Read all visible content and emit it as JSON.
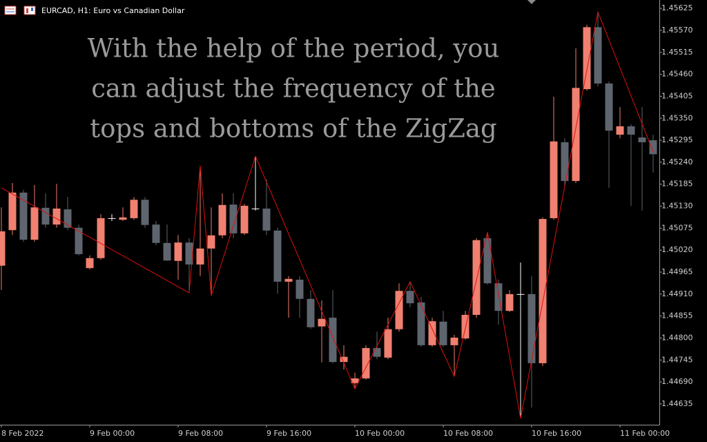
{
  "chart_data": {
    "type": "candlestick",
    "title": "EURCAD, H1:  Euro vs Canadian Dollar",
    "annotation": [
      "With the help of the period, you",
      "can adjust the frequency of the",
      "tops and bottoms of the ZigZag"
    ],
    "categories": [
      "8 Feb 2022",
      null,
      null,
      null,
      null,
      null,
      null,
      null,
      "9 Feb 00:00",
      null,
      null,
      null,
      null,
      null,
      null,
      null,
      "9 Feb 08:00",
      null,
      null,
      null,
      null,
      null,
      null,
      null,
      "9 Feb 16:00",
      null,
      null,
      null,
      null,
      null,
      null,
      null,
      "10 Feb 00:00",
      null,
      null,
      null,
      null,
      null,
      null,
      null,
      "10 Feb 08:00",
      null,
      null,
      null,
      null,
      null,
      null,
      null,
      "10 Feb 16:00",
      null,
      null,
      null,
      null,
      null,
      null,
      null,
      "11 Feb 00:00",
      null,
      null,
      null
    ],
    "open": [
      1.44981,
      1.4507,
      1.45164,
      1.45046,
      1.45126,
      1.45084,
      1.45122,
      1.45076,
      1.44975,
      1.45,
      1.451,
      1.45096,
      1.451,
      1.45146,
      1.45084,
      1.45038,
      1.44993,
      1.45039,
      1.44984,
      1.45024,
      1.45057,
      1.45134,
      1.45062,
      1.45124,
      1.45124,
      1.45069,
      1.44941,
      1.44946,
      1.44898,
      1.44829,
      1.44851,
      1.4474,
      1.44687,
      1.44699,
      1.44775,
      1.44751,
      1.44822,
      1.44918,
      1.44889,
      1.44782,
      1.44841,
      1.44782,
      1.44799,
      1.44858,
      1.4505,
      1.44937,
      1.44868,
      1.4491,
      1.4491,
      1.44737,
      1.451,
      1.4529,
      1.45193,
      1.45423,
      1.45578,
      1.45437,
      1.45309,
      1.4533,
      1.45302,
      1.45295
    ],
    "high": [
      1.45127,
      1.45188,
      1.45171,
      1.45183,
      1.45162,
      1.45186,
      1.45153,
      1.45084,
      1.45007,
      1.4511,
      1.4511,
      1.45127,
      1.45153,
      1.45153,
      1.45093,
      1.45084,
      1.45058,
      1.4505,
      1.45231,
      1.45127,
      1.45162,
      1.45162,
      1.45136,
      1.45255,
      1.45197,
      1.45076,
      1.44955,
      1.44955,
      1.4492,
      1.44894,
      1.4492,
      1.44782,
      1.44713,
      1.44782,
      1.44816,
      1.44851,
      1.44937,
      1.44941,
      1.44903,
      1.44851,
      1.44868,
      1.44808,
      1.44868,
      1.4505,
      1.45065,
      1.44946,
      1.4492,
      1.44989,
      1.44955,
      1.45102,
      1.45404,
      1.453,
      1.45525,
      1.45584,
      1.45616,
      1.45442,
      1.45378,
      1.45335,
      1.45378,
      1.45309
    ],
    "low": [
      1.4492,
      1.45058,
      1.45041,
      1.45041,
      1.45076,
      1.45076,
      1.4507,
      1.45007,
      1.44972,
      1.44996,
      1.45093,
      1.45093,
      1.45096,
      1.45076,
      1.45032,
      1.44993,
      1.44946,
      1.44913,
      1.44955,
      1.44906,
      1.4505,
      1.4505,
      1.45058,
      1.45119,
      1.45058,
      1.44911,
      1.44851,
      1.44851,
      1.44823,
      1.44739,
      1.44737,
      1.44721,
      1.44673,
      1.44696,
      1.44747,
      1.44747,
      1.44816,
      1.44877,
      1.44778,
      1.44778,
      1.44778,
      1.44704,
      1.44796,
      1.44851,
      1.44934,
      1.44834,
      1.44865,
      1.44599,
      1.44626,
      1.4473,
      1.45096,
      1.45179,
      1.45188,
      1.45419,
      1.4543,
      1.45176,
      1.453,
      1.45131,
      1.45119,
      1.45214
    ],
    "close": [
      1.45067,
      1.45164,
      1.45046,
      1.45127,
      1.45084,
      1.45124,
      1.45076,
      1.4501,
      1.45,
      1.451,
      1.451,
      1.45102,
      1.45146,
      1.45083,
      1.45038,
      1.44994,
      1.45039,
      1.44984,
      1.45024,
      1.45057,
      1.45133,
      1.45062,
      1.45131,
      1.45124,
      1.45069,
      1.44941,
      1.44948,
      1.44898,
      1.44827,
      1.44848,
      1.4474,
      1.44753,
      1.44699,
      1.44775,
      1.44753,
      1.44822,
      1.44918,
      1.44887,
      1.44782,
      1.44842,
      1.44782,
      1.44801,
      1.44858,
      1.45045,
      1.44937,
      1.44868,
      1.4491,
      1.4491,
      1.44737,
      1.45098,
      1.45292,
      1.45193,
      1.45426,
      1.45578,
      1.45437,
      1.45319,
      1.4533,
      1.45309,
      1.4529,
      1.4526
    ],
    "up_color": "#f08070",
    "down_color": "#5e656e",
    "doji_color": "#ffffff",
    "zigzag": {
      "color": "#e01010",
      "x": [
        0,
        17,
        18,
        19,
        23,
        32,
        37,
        41,
        44,
        47,
        54,
        59
      ],
      "values": [
        1.45176,
        1.44913,
        1.45231,
        1.44906,
        1.45255,
        1.44673,
        1.44941,
        1.44704,
        1.45065,
        1.44599,
        1.45616,
        1.45266
      ]
    },
    "ylim": [
      1.44583,
      1.45646
    ],
    "yticks": [
      1.45625,
      {
        "value": 1.4557,
        "label": "1.45570"
      },
      1.45515,
      {
        "value": 1.4546,
        "label": "1.45460"
      },
      1.45405,
      {
        "value": 1.4535,
        "label": "1.45350"
      },
      1.45295,
      {
        "value": 1.4524,
        "label": "1.45240"
      },
      1.45185,
      {
        "value": 1.4513,
        "label": "1.45130"
      },
      1.45075,
      {
        "value": 1.4502,
        "label": "1.45020"
      },
      1.44965,
      {
        "value": 1.4491,
        "label": "1.44910"
      },
      1.44855,
      {
        "value": 1.448,
        "label": "1.44800"
      },
      1.44745,
      {
        "value": 1.4469,
        "label": "1.44690"
      },
      1.44635
    ]
  }
}
